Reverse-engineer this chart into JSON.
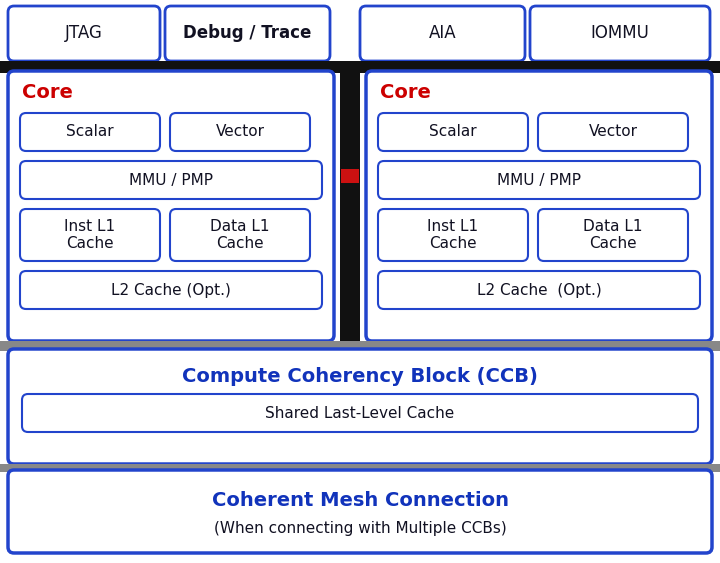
{
  "bg_color": "#ffffff",
  "blue_border": "#2244cc",
  "red_text": "#cc0000",
  "dark_text": "#111122",
  "blue_bold_text": "#1133bb",
  "top_boxes": [
    {
      "label": "JTAG",
      "bold": false
    },
    {
      "label": "Debug / Trace",
      "bold": true
    },
    {
      "label": "AIA",
      "bold": false
    },
    {
      "label": "IOMMU",
      "bold": false
    }
  ],
  "core_label": "Core",
  "core_inner_left": [
    {
      "label": "Scalar"
    },
    {
      "label": "Vector"
    },
    {
      "label": "MMU / PMP",
      "full_width": true
    },
    {
      "label": "Inst L1\nCache"
    },
    {
      "label": "Data L1\nCache"
    },
    {
      "label": "L2 Cache (Opt.)",
      "full_width": true
    }
  ],
  "core_inner_right": [
    {
      "label": "Scalar"
    },
    {
      "label": "Vector"
    },
    {
      "label": "MMU / PMP",
      "full_width": true
    },
    {
      "label": "Inst L1\nCache"
    },
    {
      "label": "Data L1\nCache"
    },
    {
      "label": "L2 Cache  (Opt.)",
      "full_width": true
    }
  ],
  "ccb_title": "Compute Coherency Block (CCB)",
  "ccb_inner": "Shared Last-Level Cache",
  "mesh_title": "Coherent Mesh Connection",
  "mesh_subtitle": "(When connecting with Multiple CCBs)"
}
